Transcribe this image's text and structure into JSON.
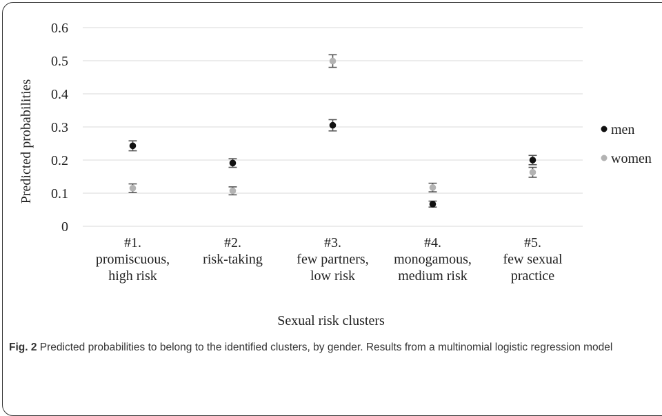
{
  "chart_data": {
    "type": "scatter",
    "xlabel": "Sexual risk clusters",
    "ylabel": "Predicted probabilities",
    "ylim": [
      0,
      0.6
    ],
    "yticks": [
      "0",
      "0.1",
      "0.2",
      "0.3",
      "0.4",
      "0.5",
      "0.6"
    ],
    "grid": true,
    "legend_position": "right",
    "categories": [
      [
        "#1.",
        "promiscuous,",
        "high risk"
      ],
      [
        "#2.",
        "risk-taking"
      ],
      [
        "#3.",
        "few partners,",
        "low risk"
      ],
      [
        "#4.",
        "monogamous,",
        "medium risk"
      ],
      [
        "#5.",
        "few sexual",
        "practice"
      ]
    ],
    "series": [
      {
        "name": "men",
        "color": "#111111",
        "values": [
          0.243,
          0.191,
          0.305,
          0.067,
          0.2
        ],
        "error_low": [
          0.228,
          0.178,
          0.288,
          0.058,
          0.186
        ],
        "error_high": [
          0.258,
          0.204,
          0.322,
          0.076,
          0.214
        ]
      },
      {
        "name": "women",
        "color": "#b3b3b3",
        "values": [
          0.115,
          0.107,
          0.499,
          0.117,
          0.163
        ],
        "error_low": [
          0.102,
          0.095,
          0.48,
          0.104,
          0.148
        ],
        "error_high": [
          0.128,
          0.119,
          0.518,
          0.13,
          0.178
        ]
      }
    ]
  },
  "caption": {
    "fig_label": "Fig. 2",
    "text": "Predicted probabilities to belong to the identified clusters, by gender. Results from a multinomial logistic regression model"
  }
}
